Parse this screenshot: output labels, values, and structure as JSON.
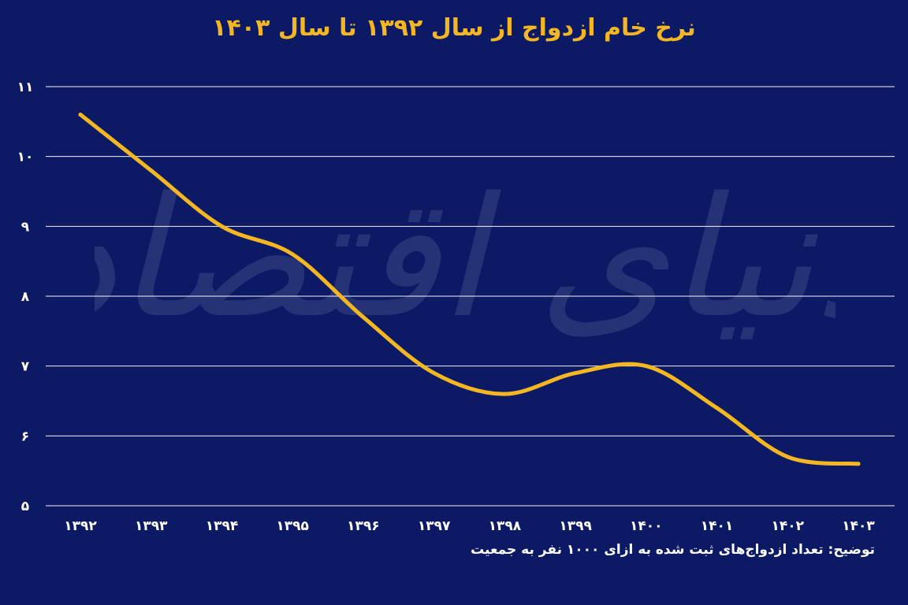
{
  "chart_data": {
    "type": "line",
    "title": "نرخ خام ازدواج از سال ۱۳۹۲ تا سال ۱۴۰۳",
    "categories": [
      "۱۳۹۲",
      "۱۳۹۳",
      "۱۳۹۴",
      "۱۳۹۵",
      "۱۳۹۶",
      "۱۳۹۷",
      "۱۳۹۸",
      "۱۳۹۹",
      "۱۴۰۰",
      "۱۴۰۱",
      "۱۴۰۲",
      "۱۴۰۳"
    ],
    "series": [
      {
        "values": [
          10.6,
          9.8,
          9.0,
          8.6,
          7.7,
          6.9,
          6.6,
          6.9,
          7.0,
          6.4,
          5.7,
          5.6
        ]
      }
    ],
    "ylim": [
      5,
      11
    ],
    "yticks": [
      5,
      6,
      7,
      8,
      9,
      10,
      11
    ],
    "ytick_labels": [
      "۵",
      "۶",
      "۷",
      "۸",
      "۹",
      "۱۰",
      "۱۱"
    ],
    "grid": true,
    "line_color": "#f5b721",
    "background_color": "#0c1a66",
    "note": "توضیح: تعداد ازدواج‌های ثبت شده به ازای ۱۰۰۰ نفر به جمعیت"
  },
  "watermark": "دنیای اقتصاد"
}
